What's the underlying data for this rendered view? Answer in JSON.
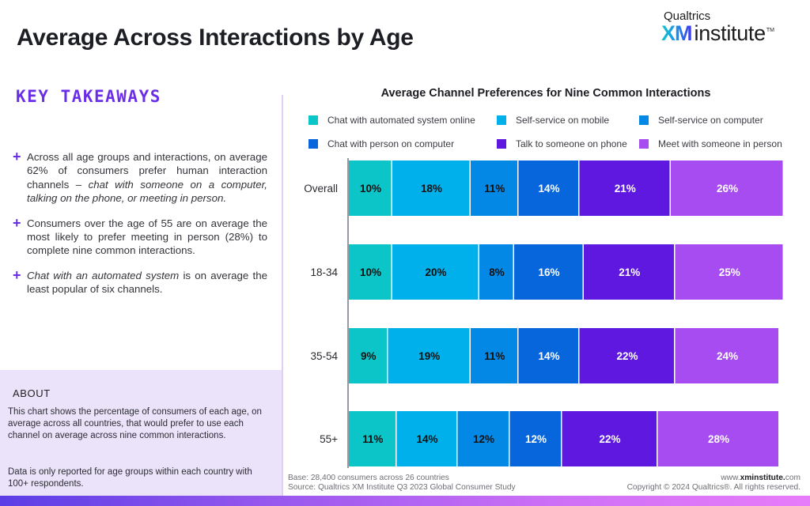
{
  "header": {
    "title": "Average Across Interactions by Age",
    "logo": {
      "brand_top": "Qualtrics",
      "brand_xm": "XM",
      "brand_institute": "institute",
      "trademark": "TM"
    }
  },
  "left_panel": {
    "key_takeaways_title": "KEY TAKEAWAYS",
    "bullet_icon": "plus-icon",
    "bullets": [
      {
        "pre": "Across all age groups and interactions, on average 62% of consumers prefer human interaction channels – ",
        "em": "chat with someone on a computer, talking on the phone, or meeting in person.",
        "post": ""
      },
      {
        "pre": "Consumers over the age of 55 are on average the most likely to prefer meeting in person (28%) to complete nine common interactions.",
        "em": "",
        "post": ""
      },
      {
        "pre": "",
        "em": "Chat with an automated system",
        "post": " is on average the least popular of six channels."
      }
    ],
    "about_title": "ABOUT",
    "about_p1": "This chart shows the percentage of consumers of each age, on average across all countries, that would prefer to use each channel on average across nine common interactions.",
    "about_p2": "Data is only reported for age groups within each country with 100+ respondents."
  },
  "chart_data": {
    "type": "bar",
    "orientation": "horizontal",
    "stacked": true,
    "title": "Average Channel Preferences for Nine Common Interactions",
    "xlabel": "",
    "ylabel": "",
    "xlim": [
      0,
      100
    ],
    "grid": false,
    "legend_position": "top",
    "categories": [
      "Overall",
      "18-34",
      "35-54",
      "55+"
    ],
    "series": [
      {
        "name": "Chat with automated system online",
        "color": "#0bc5c8",
        "label_color": "#111111",
        "values": [
          10,
          10,
          9,
          11
        ]
      },
      {
        "name": "Self-service on mobile",
        "color": "#00b0ea",
        "label_color": "#111111",
        "values": [
          18,
          20,
          19,
          14
        ]
      },
      {
        "name": "Self-service on computer",
        "color": "#0388e6",
        "label_color": "#111111",
        "values": [
          11,
          8,
          11,
          12
        ]
      },
      {
        "name": "Chat with person on computer",
        "color": "#0866dd",
        "label_color": "#ffffff",
        "values": [
          14,
          16,
          14,
          12
        ]
      },
      {
        "name": "Talk to someone on phone",
        "color": "#5e18df",
        "label_color": "#ffffff",
        "values": [
          21,
          21,
          22,
          22
        ]
      },
      {
        "name": "Meet with someone in person",
        "color": "#a64cf0",
        "label_color": "#ffffff",
        "values": [
          26,
          25,
          24,
          28
        ]
      }
    ],
    "value_suffix": "%"
  },
  "footer": {
    "base": "Base: 28,400 consumers across 26 countries",
    "source": "Source: Qualtrics XM Institute Q3 2023 Global Consumer Study",
    "url_prefix": "www.",
    "url_bold": "xminstitute.",
    "url_suffix": "com",
    "copyright": "Copyright © 2024 Qualtrics®. All rights reserved."
  }
}
